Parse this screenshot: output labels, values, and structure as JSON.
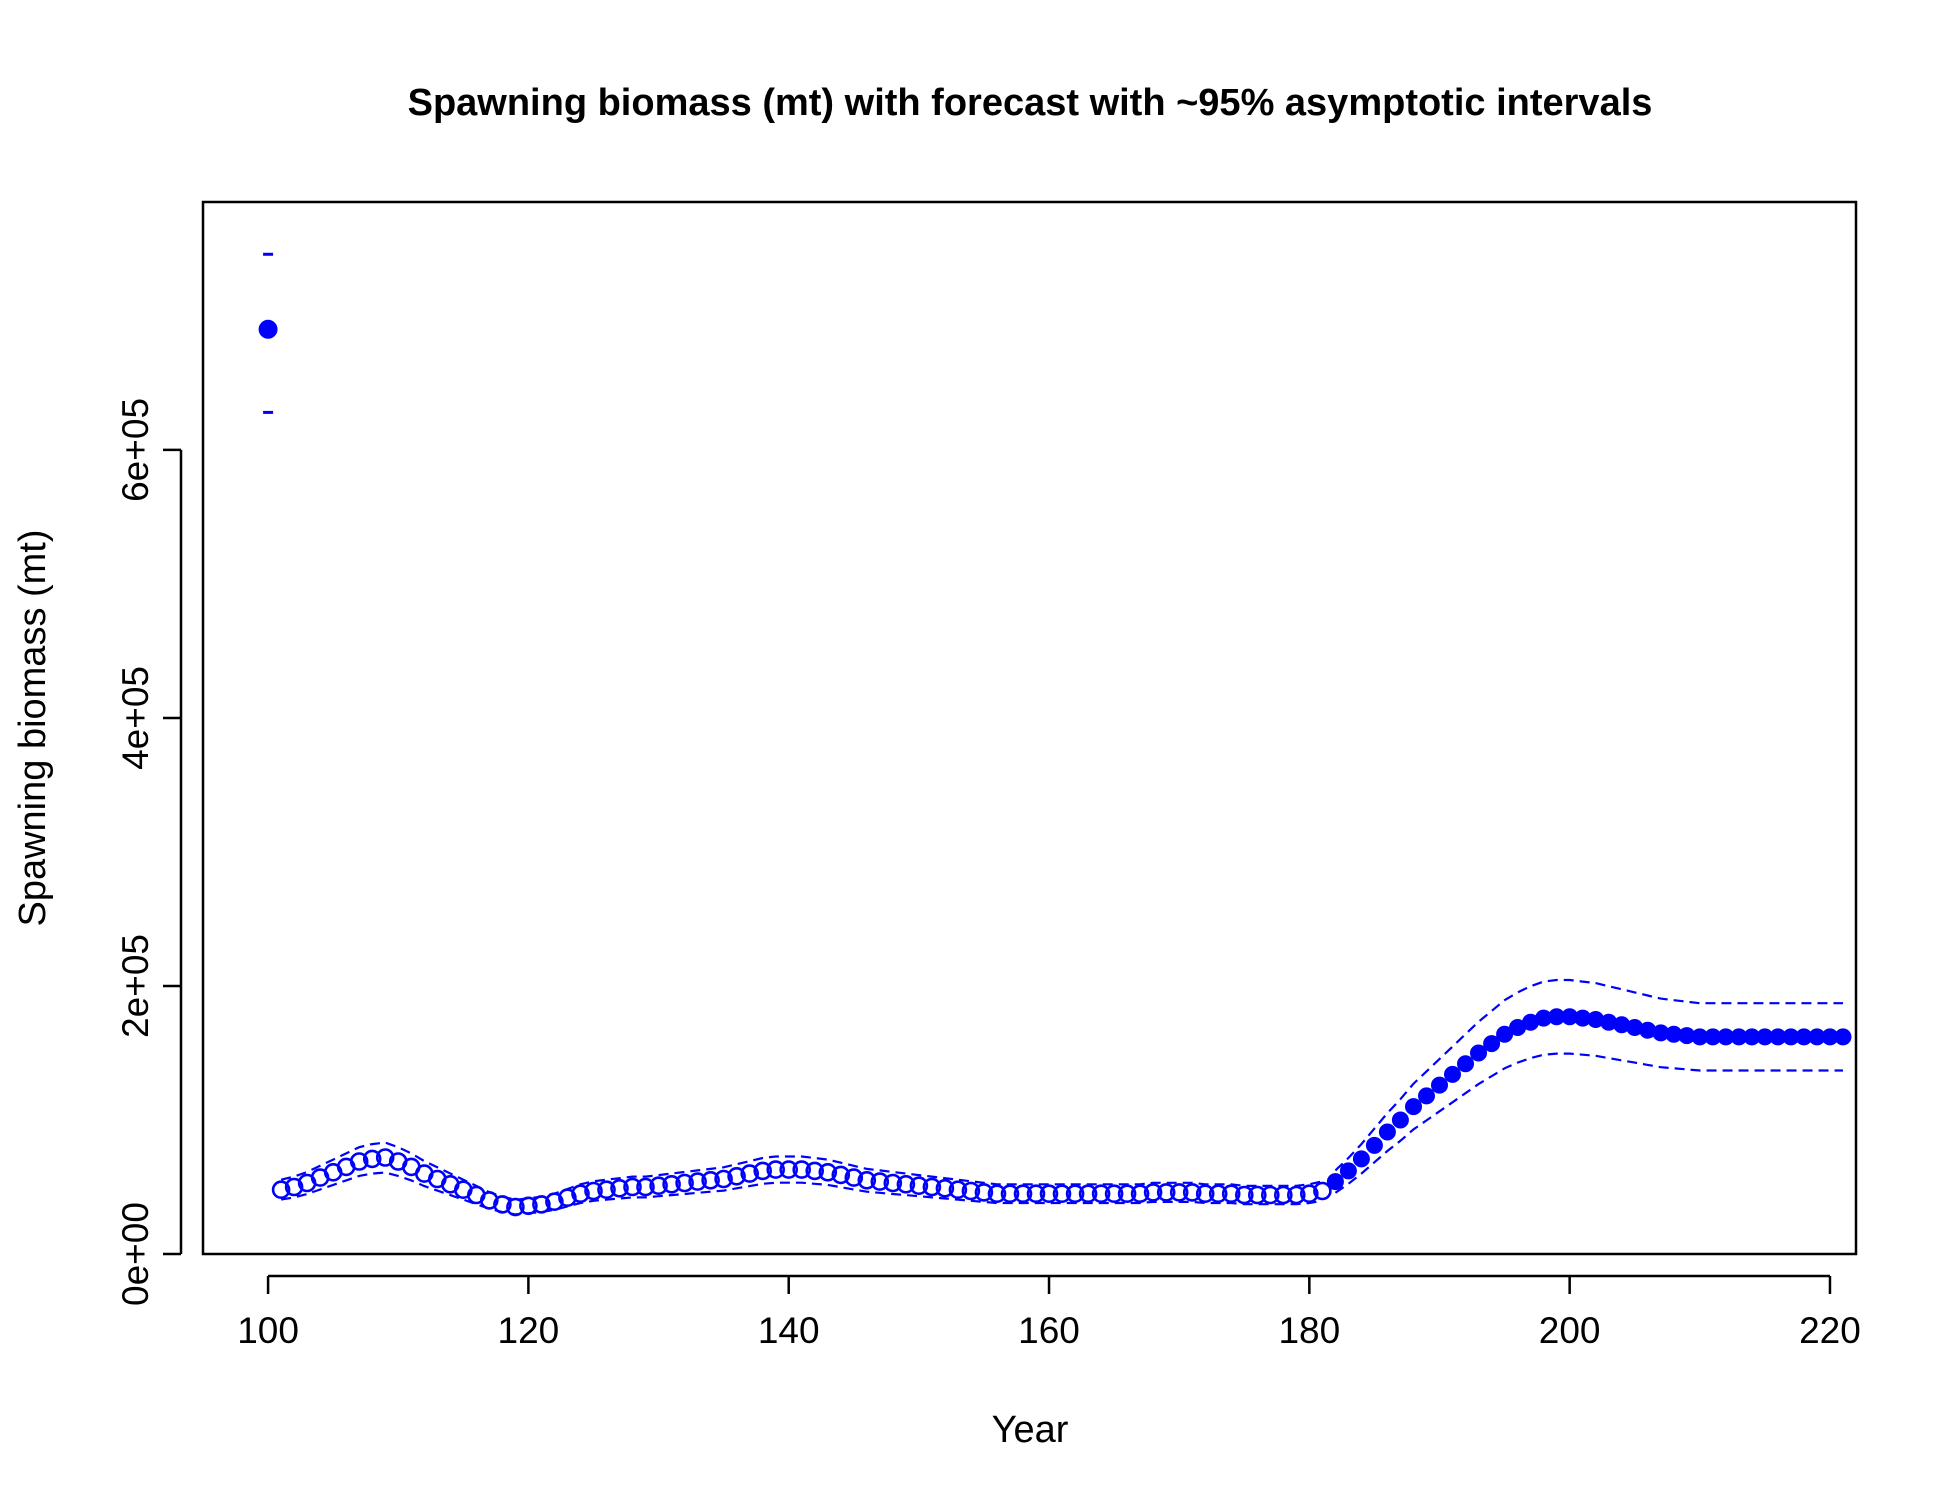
{
  "chart_data": {
    "type": "scatter",
    "title": "Spawning biomass (mt) with forecast with ~95% asymptotic intervals",
    "xlabel": "Year",
    "ylabel": "Spawning biomass (mt)",
    "xlim": [
      95,
      222
    ],
    "ylim": [
      0,
      785000
    ],
    "x_ticks": [
      100,
      120,
      140,
      160,
      180,
      200,
      220
    ],
    "y_ticks": [
      0,
      200000,
      400000,
      600000
    ],
    "x_tick_labels": [
      "100",
      "120",
      "140",
      "160",
      "180",
      "200",
      "220"
    ],
    "y_tick_labels": [
      "0e+00",
      "2e+05",
      "4e+05",
      "6e+05"
    ],
    "color": "#0000ff",
    "virgin": {
      "x": 100,
      "y": 690000,
      "lower": 628000,
      "upper": 746000
    },
    "ci_half_width_fraction": 0.155,
    "series": [
      {
        "style": "open",
        "x": [
          101,
          102,
          103,
          104,
          105,
          106,
          107,
          108,
          109,
          110,
          111,
          112,
          113,
          114,
          115,
          116,
          117,
          118,
          119,
          120,
          121,
          122,
          123,
          124,
          125,
          126,
          127,
          128,
          129,
          130,
          131,
          132,
          133,
          134,
          135,
          136,
          137,
          138,
          139,
          140,
          141,
          142,
          143,
          144,
          145,
          146,
          147,
          148,
          149,
          150,
          151,
          152,
          153,
          154,
          155,
          156,
          157,
          158,
          159,
          160,
          161,
          162,
          163,
          164,
          165,
          166,
          167,
          168,
          169,
          170,
          171,
          172,
          173,
          174,
          175,
          176,
          177,
          178,
          179,
          180,
          181
        ],
        "y": [
          48000,
          50000,
          53000,
          57000,
          61000,
          65000,
          69000,
          71000,
          72000,
          69000,
          65000,
          60000,
          56000,
          52000,
          48000,
          44000,
          40000,
          37000,
          35000,
          36000,
          37000,
          39000,
          42000,
          45000,
          47000,
          48000,
          49000,
          50000,
          50000,
          51000,
          52000,
          53000,
          54000,
          55000,
          56000,
          58000,
          60000,
          62000,
          63000,
          63000,
          63000,
          62000,
          61000,
          59000,
          57000,
          55000,
          54000,
          53000,
          52000,
          51000,
          50000,
          49000,
          48000,
          47000,
          46000,
          45000,
          45000,
          45000,
          45000,
          45000,
          45000,
          45000,
          45000,
          45000,
          45000,
          45000,
          45000,
          46000,
          46000,
          46000,
          46000,
          45000,
          45000,
          45000,
          44000,
          44000,
          44000,
          44000,
          44000,
          45000,
          47000
        ]
      },
      {
        "style": "filled",
        "x": [
          182,
          183,
          184,
          185,
          186,
          187,
          188,
          189,
          190,
          191,
          192,
          193,
          194,
          195,
          196,
          197,
          198,
          199,
          200,
          201,
          202,
          203,
          204,
          205,
          206,
          207,
          208,
          209,
          210,
          211,
          212,
          213,
          214,
          215,
          216,
          217,
          218,
          219,
          220,
          221
        ],
        "y": [
          54000,
          62000,
          71000,
          81000,
          91000,
          100000,
          110000,
          118000,
          126000,
          134000,
          142000,
          150000,
          157000,
          164000,
          169000,
          173000,
          176000,
          177000,
          177000,
          176000,
          175000,
          173000,
          171000,
          169000,
          167000,
          165000,
          164000,
          163000,
          162000,
          162000,
          162000,
          162000,
          162000,
          162000,
          162000,
          162000,
          162000,
          162000,
          162000,
          162000
        ]
      }
    ]
  }
}
